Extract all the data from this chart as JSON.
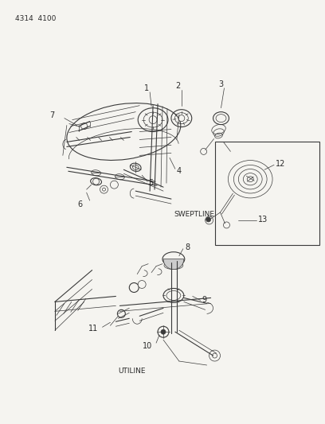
{
  "page_id": "4314  4100",
  "bg": "#f5f4f0",
  "lc": "#3a3a3a",
  "tc": "#2a2a2a",
  "fig_width": 4.08,
  "fig_height": 5.33,
  "dpi": 100,
  "sweptline_label": "SWEPTLINE",
  "utiline_label": "UTILINE"
}
